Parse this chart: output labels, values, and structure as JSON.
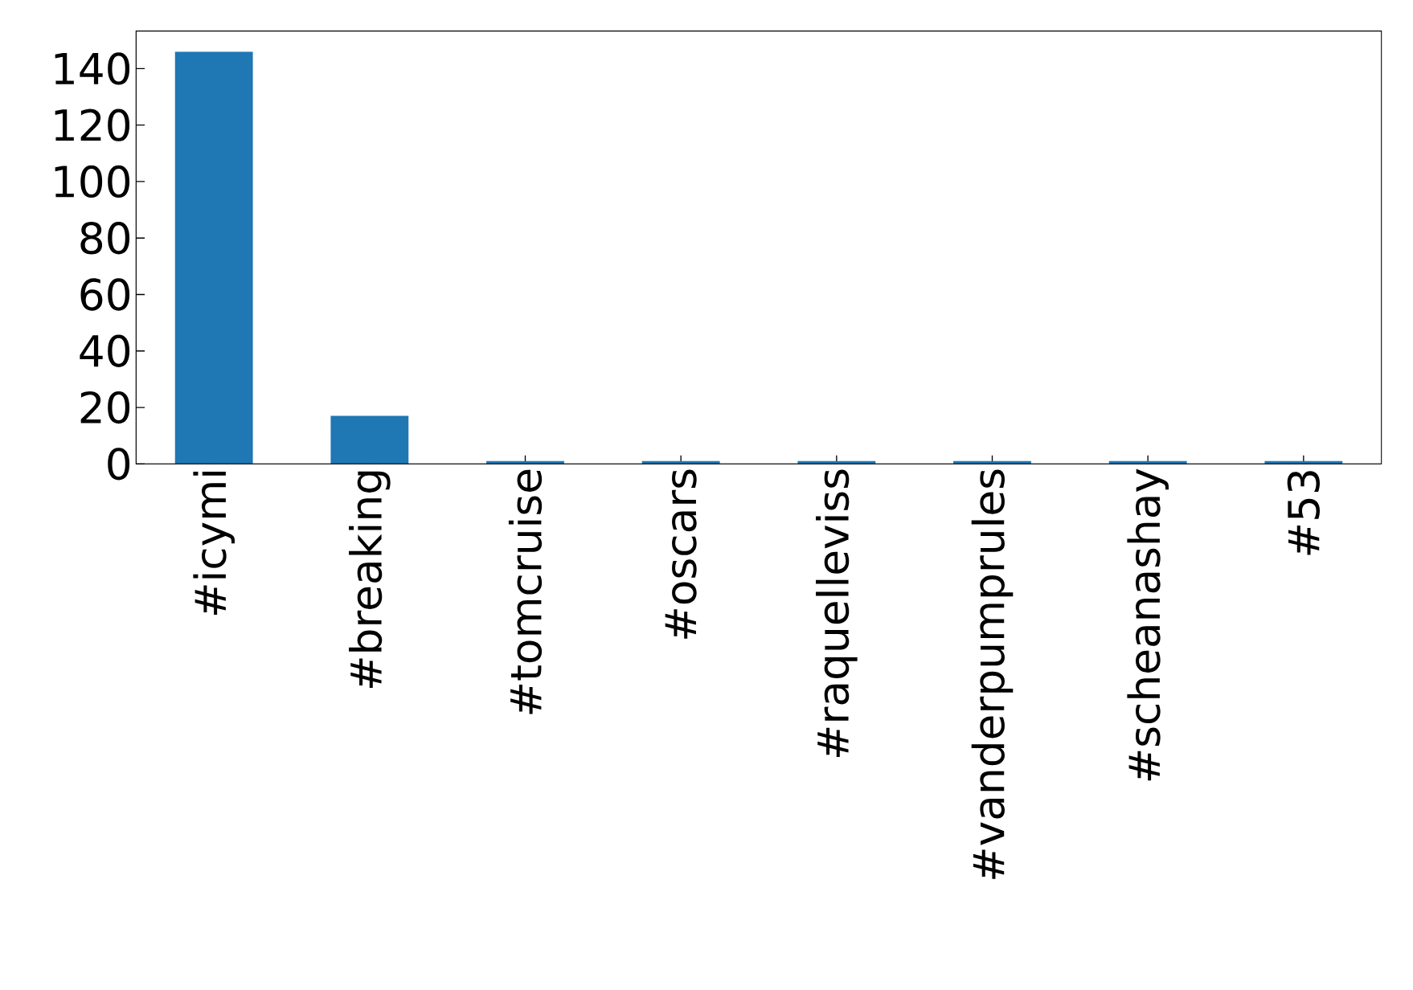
{
  "chart_data": {
    "type": "bar",
    "categories": [
      "#icymi",
      "#breaking",
      "#tomcruise",
      "#oscars",
      "#raquelleviss",
      "#vanderpumprules",
      "#scheanashay",
      "#53"
    ],
    "values": [
      146,
      17,
      1,
      1,
      1,
      1,
      1,
      1
    ],
    "color": "#1f77b4",
    "ylim": [
      0,
      153.3
    ],
    "yticks": [
      0,
      20,
      40,
      60,
      80,
      100,
      120,
      140
    ]
  }
}
